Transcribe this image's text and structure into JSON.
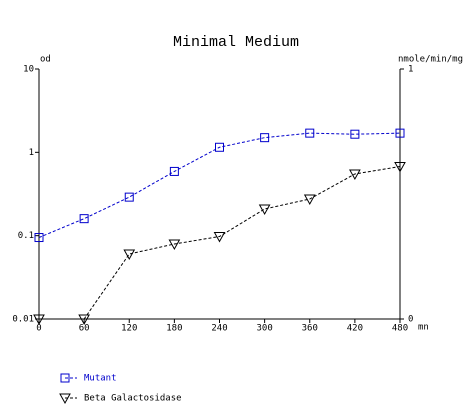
{
  "chart_data": {
    "type": "line",
    "title": "Minimal Medium",
    "y_label": "od",
    "y2_label": "nmole/min/mg",
    "x_label": "mn",
    "x": [
      0,
      60,
      120,
      180,
      240,
      300,
      360,
      420,
      480
    ],
    "xlim": [
      0,
      480
    ],
    "xticks": [
      0,
      60,
      120,
      180,
      240,
      300,
      360,
      420,
      480
    ],
    "ylim": [
      0.01,
      10
    ],
    "yticks": [
      0.01,
      0.1,
      1,
      10
    ],
    "y_log": true,
    "y2lim": [
      0,
      1
    ],
    "y2ticks": [
      0,
      1
    ],
    "legend": "bottom-left",
    "series": [
      {
        "name": "Mutant",
        "color": "#0000cc",
        "marker": "square",
        "values": [
          0.095,
          0.16,
          0.29,
          0.59,
          1.15,
          1.5,
          1.7,
          1.65,
          1.7
        ]
      },
      {
        "name": "Beta Galactosidase",
        "color": "#000000",
        "marker": "triangle-down",
        "axis": "y2",
        "values": [
          0,
          0,
          0.26,
          0.3,
          0.33,
          0.44,
          0.48,
          0.58,
          0.61
        ]
      }
    ]
  }
}
